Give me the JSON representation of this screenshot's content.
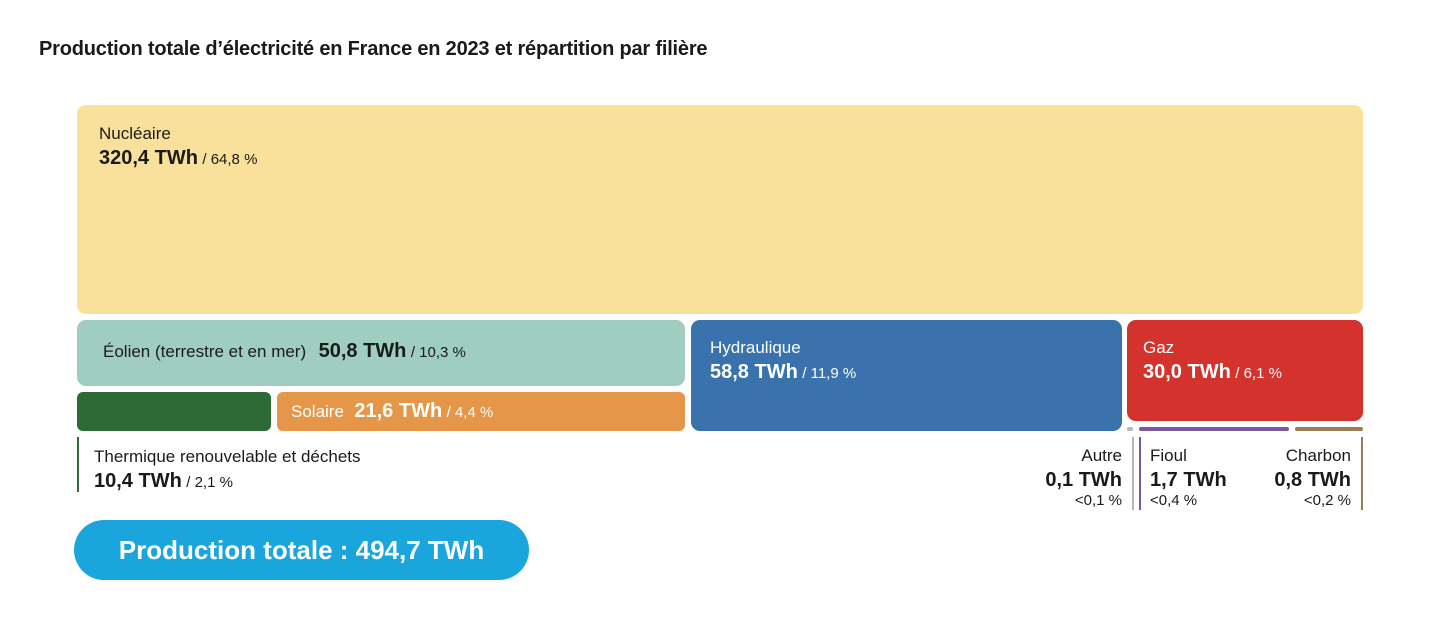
{
  "chart_data": {
    "type": "treemap",
    "title": "Production totale d’électricité en France en 2023 et répartition par filière",
    "unit": "TWh",
    "items": [
      {
        "key": "nucleaire",
        "name": "Nucléaire",
        "value": 320.4,
        "value_label": "320,4 TWh",
        "pct_label": "/ 64,8 %",
        "color": "#f9e19b"
      },
      {
        "key": "eolien",
        "name": "Éolien (terrestre et en mer)",
        "value": 50.8,
        "value_label": "50,8 TWh",
        "pct_label": "/ 10,3 %",
        "color": "#9fcdc0"
      },
      {
        "key": "hydraulique",
        "name": "Hydraulique",
        "value": 58.8,
        "value_label": "58,8 TWh",
        "pct_label": "/ 11,9 %",
        "color": "#3a72ae"
      },
      {
        "key": "gaz",
        "name": "Gaz",
        "value": 30.0,
        "value_label": "30,0 TWh",
        "pct_label": "/ 6,1 %",
        "color": "#d4322c"
      },
      {
        "key": "thermique",
        "name": "Thermique renouvelable et déchets",
        "value": 10.4,
        "value_label": "10,4 TWh",
        "pct_label": "/ 2,1 %",
        "color": "#2e6a35"
      },
      {
        "key": "solaire",
        "name": "Solaire",
        "value": 21.6,
        "value_label": "21,6 TWh",
        "pct_label": "/ 4,4 %",
        "color": "#e69648"
      },
      {
        "key": "autre",
        "name": "Autre",
        "value": 0.1,
        "value_label": "0,1 TWh",
        "pct_label": "<0,1 %",
        "color": "#aeb8bd"
      },
      {
        "key": "fioul",
        "name": "Fioul",
        "value": 1.7,
        "value_label": "1,7 TWh",
        "pct_label": "<0,4 %",
        "color": "#7a57a3"
      },
      {
        "key": "charbon",
        "name": "Charbon",
        "value": 0.8,
        "value_label": "0,8 TWh",
        "pct_label": "<0,2 %",
        "color": "#9b7d55"
      }
    ],
    "total_label": "Production totale : 494,7 TWh",
    "total_color": "#1aa5dc"
  }
}
